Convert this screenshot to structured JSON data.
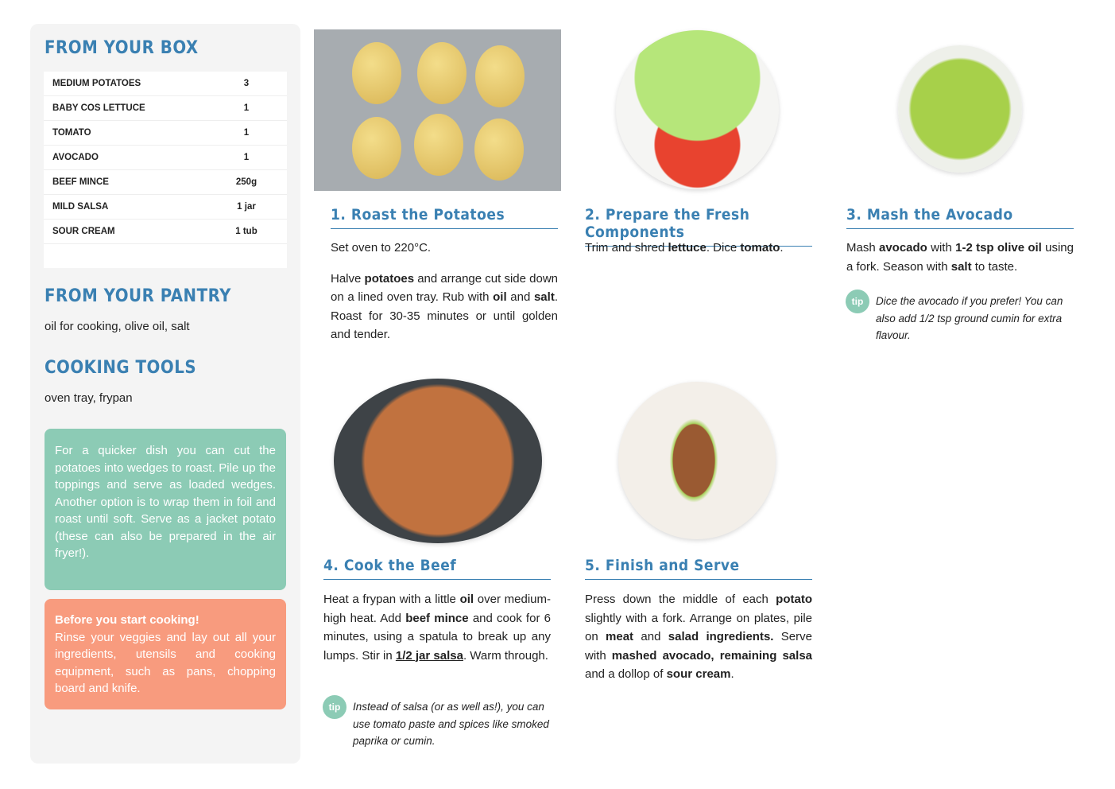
{
  "sidebar": {
    "box_title": "FROM YOUR BOX",
    "ingredients": [
      {
        "name": "MEDIUM POTATOES",
        "qty": "3"
      },
      {
        "name": "BABY COS LETTUCE",
        "qty": "1"
      },
      {
        "name": "TOMATO",
        "qty": "1"
      },
      {
        "name": "AVOCADO",
        "qty": "1"
      },
      {
        "name": "BEEF MINCE",
        "qty": "250g"
      },
      {
        "name": "MILD SALSA",
        "qty": "1 jar"
      },
      {
        "name": "SOUR CREAM",
        "qty": "1 tub"
      }
    ],
    "pantry_title": "FROM YOUR PANTRY",
    "pantry_text": "oil for cooking, olive oil, salt",
    "tools_title": "COOKING TOOLS",
    "tools_text": "oven tray, frypan",
    "green_tip": "For a quicker dish you can cut the potatoes into wedges to roast. Pile up the toppings and serve as loaded wedges. Another option is to wrap them in foil and roast until soft. Serve as a jacket potato (these can also be prepared in the air fryer!).",
    "orange_title": "Before you start cooking!",
    "orange_text": "Rinse your veggies and lay out all your ingredients, utensils and cooking equipment, such as pans, chopping board and knife."
  },
  "colors": {
    "heading": "#3a80b2",
    "green": "#8ccbb5",
    "orange": "#f89b7e",
    "panel": "#f4f4f4"
  },
  "steps": [
    {
      "title": "1. Roast the Potatoes",
      "paras": [
        [
          {
            "t": "Set oven to 220°C."
          }
        ],
        [
          {
            "t": "Halve "
          },
          {
            "t": "potatoes",
            "b": 1
          },
          {
            "t": " and arrange cut side down on a lined oven tray. Rub with "
          },
          {
            "t": "oil",
            "b": 1
          },
          {
            "t": " and "
          },
          {
            "t": "salt",
            "b": 1
          },
          {
            "t": ". Roast for 30-35 minutes or until golden and tender."
          }
        ]
      ]
    },
    {
      "title": "2. Prepare the Fresh Components",
      "paras": [
        [
          {
            "t": "Trim and shred "
          },
          {
            "t": "lettuce",
            "b": 1
          },
          {
            "t": ". Dice "
          },
          {
            "t": "tomato",
            "b": 1
          },
          {
            "t": "."
          }
        ]
      ]
    },
    {
      "title": "3. Mash the Avocado",
      "paras": [
        [
          {
            "t": "Mash "
          },
          {
            "t": "avocado",
            "b": 1
          },
          {
            "t": " with "
          },
          {
            "t": "1-2 tsp olive oil",
            "b": 1
          },
          {
            "t": " using a fork. Season with "
          },
          {
            "t": "salt",
            "b": 1
          },
          {
            "t": " to taste."
          }
        ]
      ],
      "tip": "Dice the avocado if you prefer! You can also add 1/2 tsp ground cumin for extra flavour."
    },
    {
      "title": "4. Cook the Beef",
      "paras": [
        [
          {
            "t": "Heat a frypan with a little "
          },
          {
            "t": "oil",
            "b": 1
          },
          {
            "t": " over medium-high heat. Add "
          },
          {
            "t": "beef mince",
            "b": 1
          },
          {
            "t": " and cook for 6 minutes, using a spatula to break up any lumps. Stir in "
          },
          {
            "t": "1/2 jar salsa",
            "b": 1,
            "u": 1
          },
          {
            "t": ". Warm through."
          }
        ]
      ],
      "tip": "Instead of salsa (or as well as!), you can use tomato paste and spices like smoked paprika or cumin."
    },
    {
      "title": "5. Finish and Serve",
      "paras": [
        [
          {
            "t": "Press down the middle of each "
          },
          {
            "t": "potato",
            "b": 1
          },
          {
            "t": " slightly with a fork. Arrange on plates, pile on "
          },
          {
            "t": "meat",
            "b": 1
          },
          {
            "t": " and "
          },
          {
            "t": "salad ingredients.",
            "b": 1
          },
          {
            "t": " Serve with "
          },
          {
            "t": "mashed avocado, remaining salsa",
            "b": 1
          },
          {
            "t": " and a dollop of "
          },
          {
            "t": "sour cream",
            "b": 1
          },
          {
            "t": "."
          }
        ]
      ]
    }
  ],
  "tip_label": "tip"
}
